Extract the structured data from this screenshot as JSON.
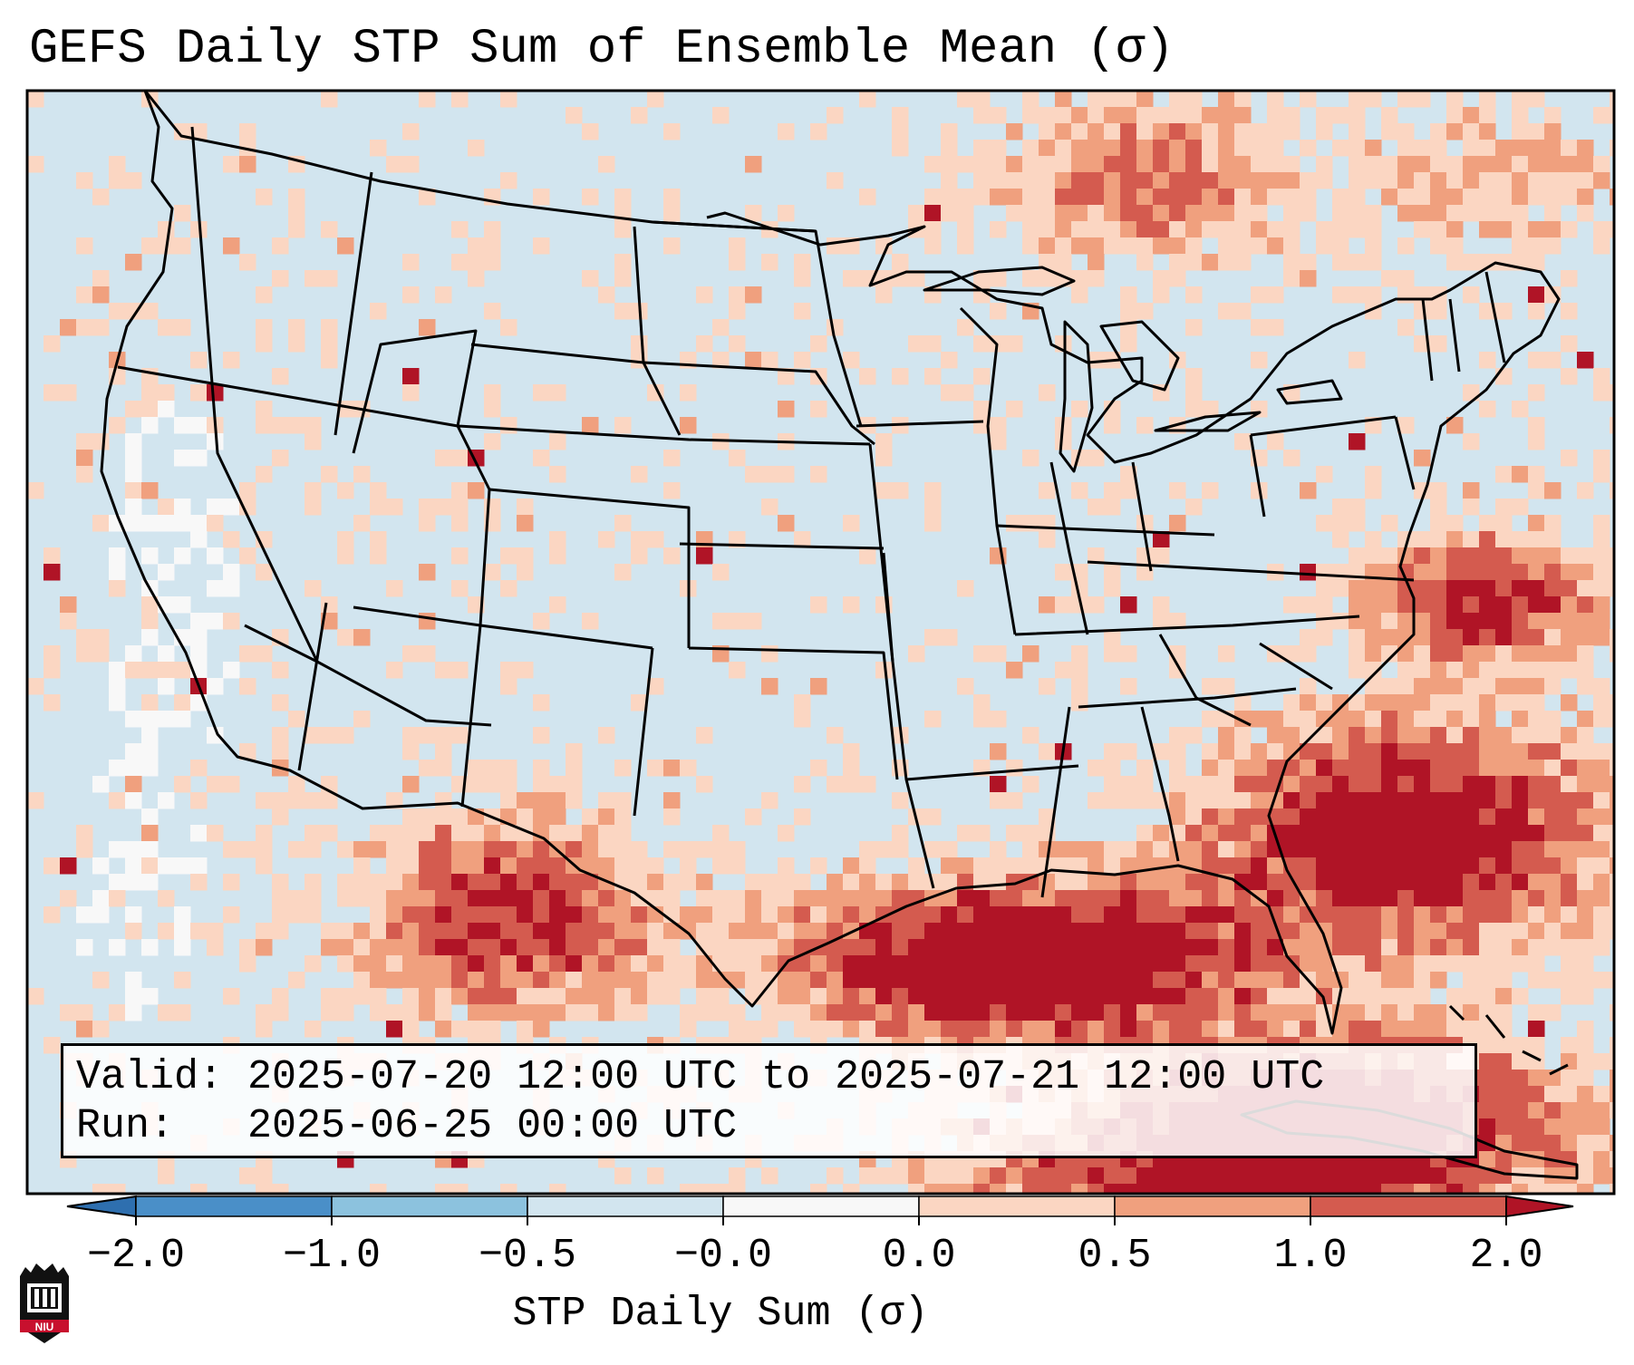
{
  "title": "GEFS Daily STP Sum of Ensemble Mean (σ)",
  "info": {
    "valid": "Valid: 2025-07-20 12:00 UTC to 2025-07-21 12:00 UTC",
    "run": "Run:   2025-06-25 00:00 UTC"
  },
  "colorbar": {
    "label": "STP Daily Sum (σ)",
    "ticks": [
      "−2.0",
      "−1.0",
      "−0.5",
      "−0.0",
      "0.0",
      "0.5",
      "1.0",
      "2.0"
    ],
    "bins": [
      {
        "color": "#4a8fc8"
      },
      {
        "color": "#8cc2de"
      },
      {
        "color": "#d2e5ef"
      },
      {
        "color": "#f8f8f8"
      },
      {
        "color": "#fbd6c2"
      },
      {
        "color": "#f0a07e"
      },
      {
        "color": "#d45b4f"
      }
    ],
    "under_color": "#2e6faf",
    "over_color": "#b01426"
  },
  "map": {
    "background_color": "#d2e5ef",
    "boundary_color": "#000000"
  },
  "logo": {
    "text": "NIU"
  }
}
